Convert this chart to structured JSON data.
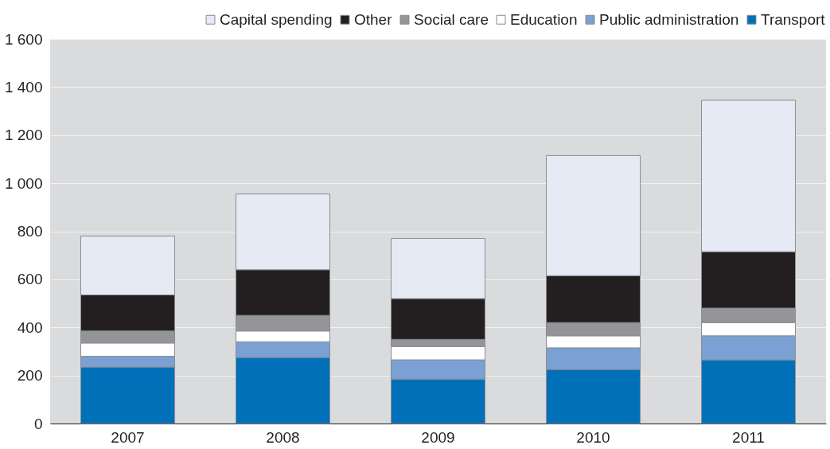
{
  "chart_data": {
    "type": "bar",
    "stacked": true,
    "categories": [
      "2007",
      "2008",
      "2009",
      "2010",
      "2011"
    ],
    "series": [
      {
        "name": "Transport",
        "color": "#0070b8",
        "values": [
          235,
          275,
          185,
          225,
          265
        ]
      },
      {
        "name": "Public administration",
        "color": "#7ba1d4",
        "values": [
          45,
          65,
          80,
          90,
          100
        ]
      },
      {
        "name": "Education",
        "color": "#ffffff",
        "values": [
          55,
          45,
          55,
          50,
          55
        ]
      },
      {
        "name": "Social care",
        "color": "#949598",
        "values": [
          50,
          65,
          30,
          55,
          60
        ]
      },
      {
        "name": "Other",
        "color": "#231f20",
        "values": [
          150,
          190,
          170,
          195,
          235
        ]
      },
      {
        "name": "Capital spending",
        "color": "#e6eaf5",
        "values": [
          245,
          315,
          250,
          500,
          630
        ]
      }
    ],
    "ylim": [
      0,
      1600
    ],
    "yticks": [
      0,
      {
        "value": 200,
        "label": "200"
      },
      {
        "value": 400,
        "label": "400"
      },
      {
        "value": 600,
        "label": "600"
      },
      {
        "value": 800,
        "label": "800"
      },
      {
        "value": 1000,
        "label": "1 000"
      },
      {
        "value": 1200,
        "label": "1 200"
      },
      {
        "value": 1400,
        "label": "1 400"
      },
      {
        "value": 1600,
        "label": "1 600"
      }
    ],
    "grid": "y",
    "legend": "top right"
  }
}
